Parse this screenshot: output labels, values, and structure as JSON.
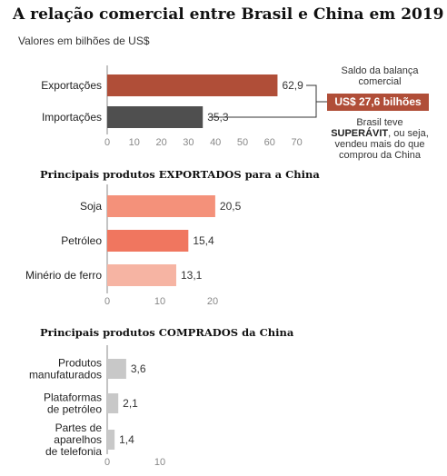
{
  "title": "A relação comercial entre Brasil e China em 2019",
  "subtitle": "Valores em bilhões de US$",
  "annotation": {
    "top": "Saldo da balança comercial",
    "badge": "US$ 27,6 bilhões",
    "bottom_pre": "Brasil teve",
    "bottom_bold": "SUPERÁVIT",
    "bottom_post": ", ou seja, vendeu mais do que comprou da China"
  },
  "colors": {
    "exportacoes": "#b04e38",
    "importacoes": "#4f4f4f",
    "soja": "#f4917a",
    "petroleo": "#f0765f",
    "minerio": "#f6b4a3",
    "comprados": "#c8c8c8",
    "badge": "#b04e38"
  },
  "chart_data": [
    {
      "type": "bar",
      "orientation": "horizontal",
      "title": "",
      "categories": [
        "Exportações",
        "Importações"
      ],
      "values": [
        62.9,
        35.3
      ],
      "value_labels": [
        "62,9",
        "35,3"
      ],
      "xlim": [
        0,
        70
      ],
      "ticks": [
        0,
        10,
        20,
        30,
        40,
        50,
        60,
        70
      ]
    },
    {
      "type": "bar",
      "orientation": "horizontal",
      "title": "Principais produtos EXPORTADOS para a China",
      "categories": [
        "Soja",
        "Petróleo",
        "Minério de ferro"
      ],
      "values": [
        20.5,
        15.4,
        13.1
      ],
      "value_labels": [
        "20,5",
        "15,4",
        "13,1"
      ],
      "xlim": [
        0,
        20
      ],
      "ticks": [
        0,
        10,
        20
      ]
    },
    {
      "type": "bar",
      "orientation": "horizontal",
      "title": "Principais produtos COMPRADOS da China",
      "categories": [
        [
          "Produtos",
          "manufaturados"
        ],
        [
          "Plataformas",
          "de petróleo"
        ],
        [
          "Partes de",
          "aparelhos",
          "de telefonia"
        ]
      ],
      "values": [
        3.6,
        2.1,
        1.4
      ],
      "value_labels": [
        "3,6",
        "2,1",
        "1,4"
      ],
      "xlim": [
        0,
        10
      ],
      "ticks": [
        0,
        10
      ]
    }
  ]
}
